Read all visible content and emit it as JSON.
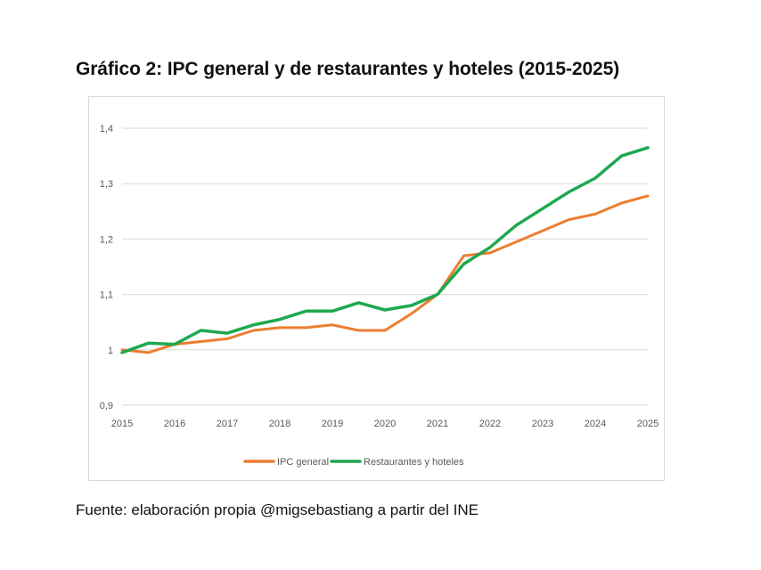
{
  "title": "Gráfico 2: IPC general y de restaurantes y hoteles (2015-2025)",
  "source": "Fuente: elaboración propia @migsebastiang a partir del INE",
  "chart_data": {
    "type": "line",
    "title": "Gráfico 2: IPC general y de restaurantes y hoteles (2015-2025)",
    "xlabel": "",
    "ylabel": "",
    "x": [
      2015,
      2015.5,
      2016,
      2016.5,
      2017,
      2017.5,
      2018,
      2018.5,
      2019,
      2019.5,
      2020,
      2020.5,
      2021,
      2021.5,
      2022,
      2022.5,
      2023,
      2023.5,
      2024,
      2024.5,
      2025
    ],
    "xticks": [
      "2015",
      "2016",
      "2017",
      "2018",
      "2019",
      "2020",
      "2021",
      "2022",
      "2023",
      "2024",
      "2025"
    ],
    "yticks": [
      "0,9",
      "1",
      "1,1",
      "1,2",
      "1,3",
      "1,4"
    ],
    "ylim": [
      0.9,
      1.4
    ],
    "xlim": [
      2015,
      2025
    ],
    "grid": true,
    "legend_position": "bottom",
    "series": [
      {
        "name": "IPC general",
        "color": "#ED7D31",
        "values": [
          1.0,
          0.995,
          1.01,
          1.015,
          1.02,
          1.035,
          1.04,
          1.04,
          1.045,
          1.035,
          1.035,
          1.065,
          1.1,
          1.17,
          1.175,
          1.195,
          1.215,
          1.235,
          1.245,
          1.265,
          1.278
        ]
      },
      {
        "name": "Restaurantes y hoteles",
        "color": "#1FA84F",
        "values": [
          0.995,
          1.012,
          1.01,
          1.035,
          1.03,
          1.045,
          1.055,
          1.07,
          1.07,
          1.085,
          1.072,
          1.08,
          1.1,
          1.155,
          1.185,
          1.225,
          1.255,
          1.285,
          1.31,
          1.35,
          1.365
        ]
      }
    ]
  }
}
